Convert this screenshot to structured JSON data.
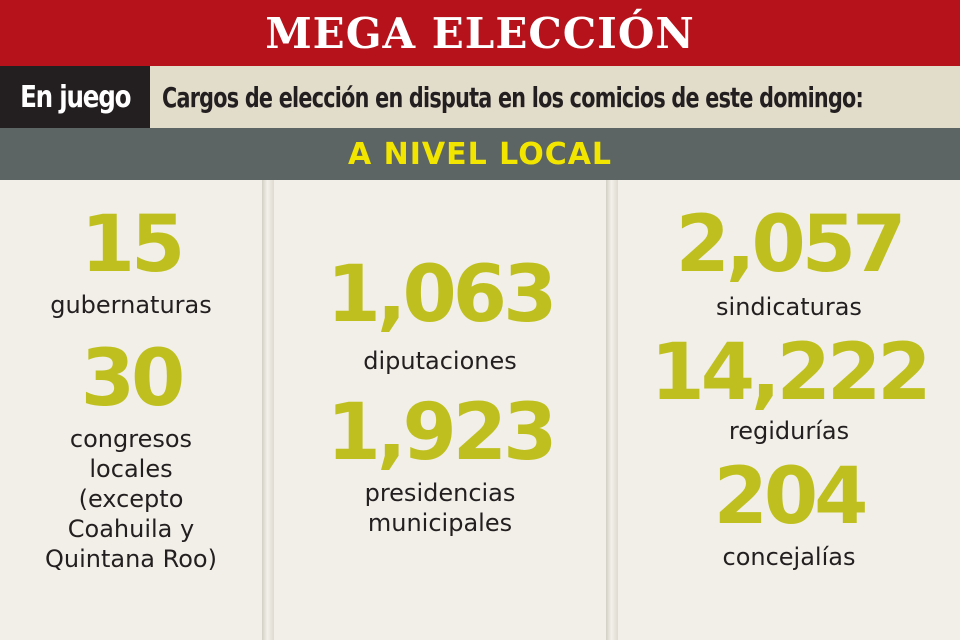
{
  "header": {
    "title": "MEGA ELECCIÓN",
    "tag": "En juego",
    "subtitle": "Cargos de elección en disputa en los comicios de este domingo:",
    "level": "A NIVEL LOCAL"
  },
  "columns": [
    {
      "items": [
        {
          "number": "15",
          "label": "gubernaturas"
        },
        {
          "number": "30",
          "label": "congresos\nlocales\n(excepto\nCoahuila y\nQuintana Roo)"
        }
      ]
    },
    {
      "items": [
        {
          "number": "1,063",
          "label": "diputaciones"
        },
        {
          "number": "1,923",
          "label": "presidencias\nmunicipales"
        }
      ]
    },
    {
      "items": [
        {
          "number": "2,057",
          "label": "sindicaturas"
        },
        {
          "number": "14,222",
          "label": "regidurías"
        },
        {
          "number": "204",
          "label": "concejalías"
        }
      ]
    }
  ],
  "colors": {
    "red": "#b5121b",
    "dark": "#231f20",
    "beige": "#e2dccb",
    "gray": "#5c6563",
    "yellow": "#f2e600",
    "olive": "#bfc01f",
    "background": "#f1efe8"
  }
}
